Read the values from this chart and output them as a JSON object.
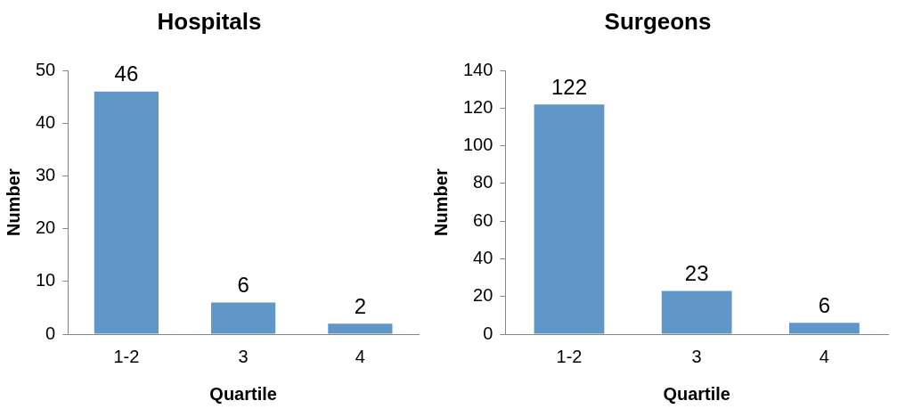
{
  "chart_data": [
    {
      "type": "bar",
      "title": "Hospitals",
      "xlabel": "Quartile",
      "ylabel": "Number",
      "categories": [
        "1-2",
        "3",
        "4"
      ],
      "values": [
        46,
        6,
        2
      ],
      "color": "#6096c8",
      "ylim": [
        0,
        50
      ],
      "yticks": [
        0,
        10,
        20,
        30,
        40,
        50
      ],
      "data_labels": true
    },
    {
      "type": "bar",
      "title": "Surgeons",
      "xlabel": "Quartile",
      "ylabel": "Number",
      "categories": [
        "1-2",
        "3",
        "4"
      ],
      "values": [
        122,
        23,
        6
      ],
      "color": "#6096c8",
      "ylim": [
        0,
        140
      ],
      "yticks": [
        0,
        20,
        40,
        60,
        80,
        100,
        120,
        140
      ],
      "data_labels": true
    }
  ]
}
